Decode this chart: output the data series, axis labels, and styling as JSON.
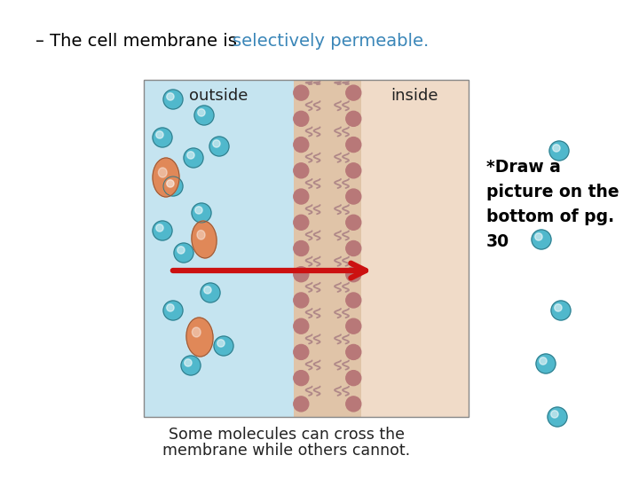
{
  "title_black": "– The cell membrane is ",
  "title_blue": "selectively permeable.",
  "title_color": "#000000",
  "title_blue_color": "#3a86b8",
  "bg_color": "#ffffff",
  "outside_bg": "#c5e4f0",
  "inside_bg": "#f0dbc8",
  "membrane_bg": "#e0c4a8",
  "membrane_head_color": "#b87878",
  "membrane_tail_color": "#b08888",
  "outside_label": "outside",
  "inside_label": "inside",
  "caption_line1": "Some molecules can cross the",
  "caption_line2": "membrane while others cannot.",
  "annotation_text": "*Draw a\npicture on the\nbottom of pg.\n30",
  "cyan_color": "#50b8cc",
  "orange_color": "#e08858"
}
